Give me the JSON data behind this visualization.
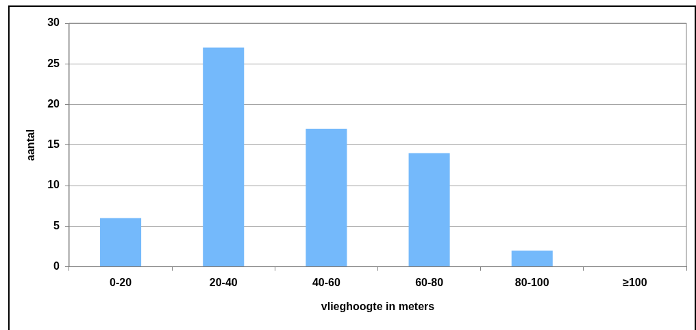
{
  "chart_data": {
    "type": "bar",
    "xlabel": "vlieghoogte in meters",
    "ylabel": "aantal",
    "categories": [
      "0-20",
      "20-40",
      "40-60",
      "60-80",
      "80-100",
      "≥100"
    ],
    "values": [
      6,
      27,
      17,
      14,
      2,
      0
    ],
    "color": "#74b9fb",
    "ylim": [
      0,
      30
    ],
    "yticks": [
      0,
      5,
      10,
      15,
      20,
      25,
      30
    ],
    "grid": "y",
    "legend": false
  }
}
